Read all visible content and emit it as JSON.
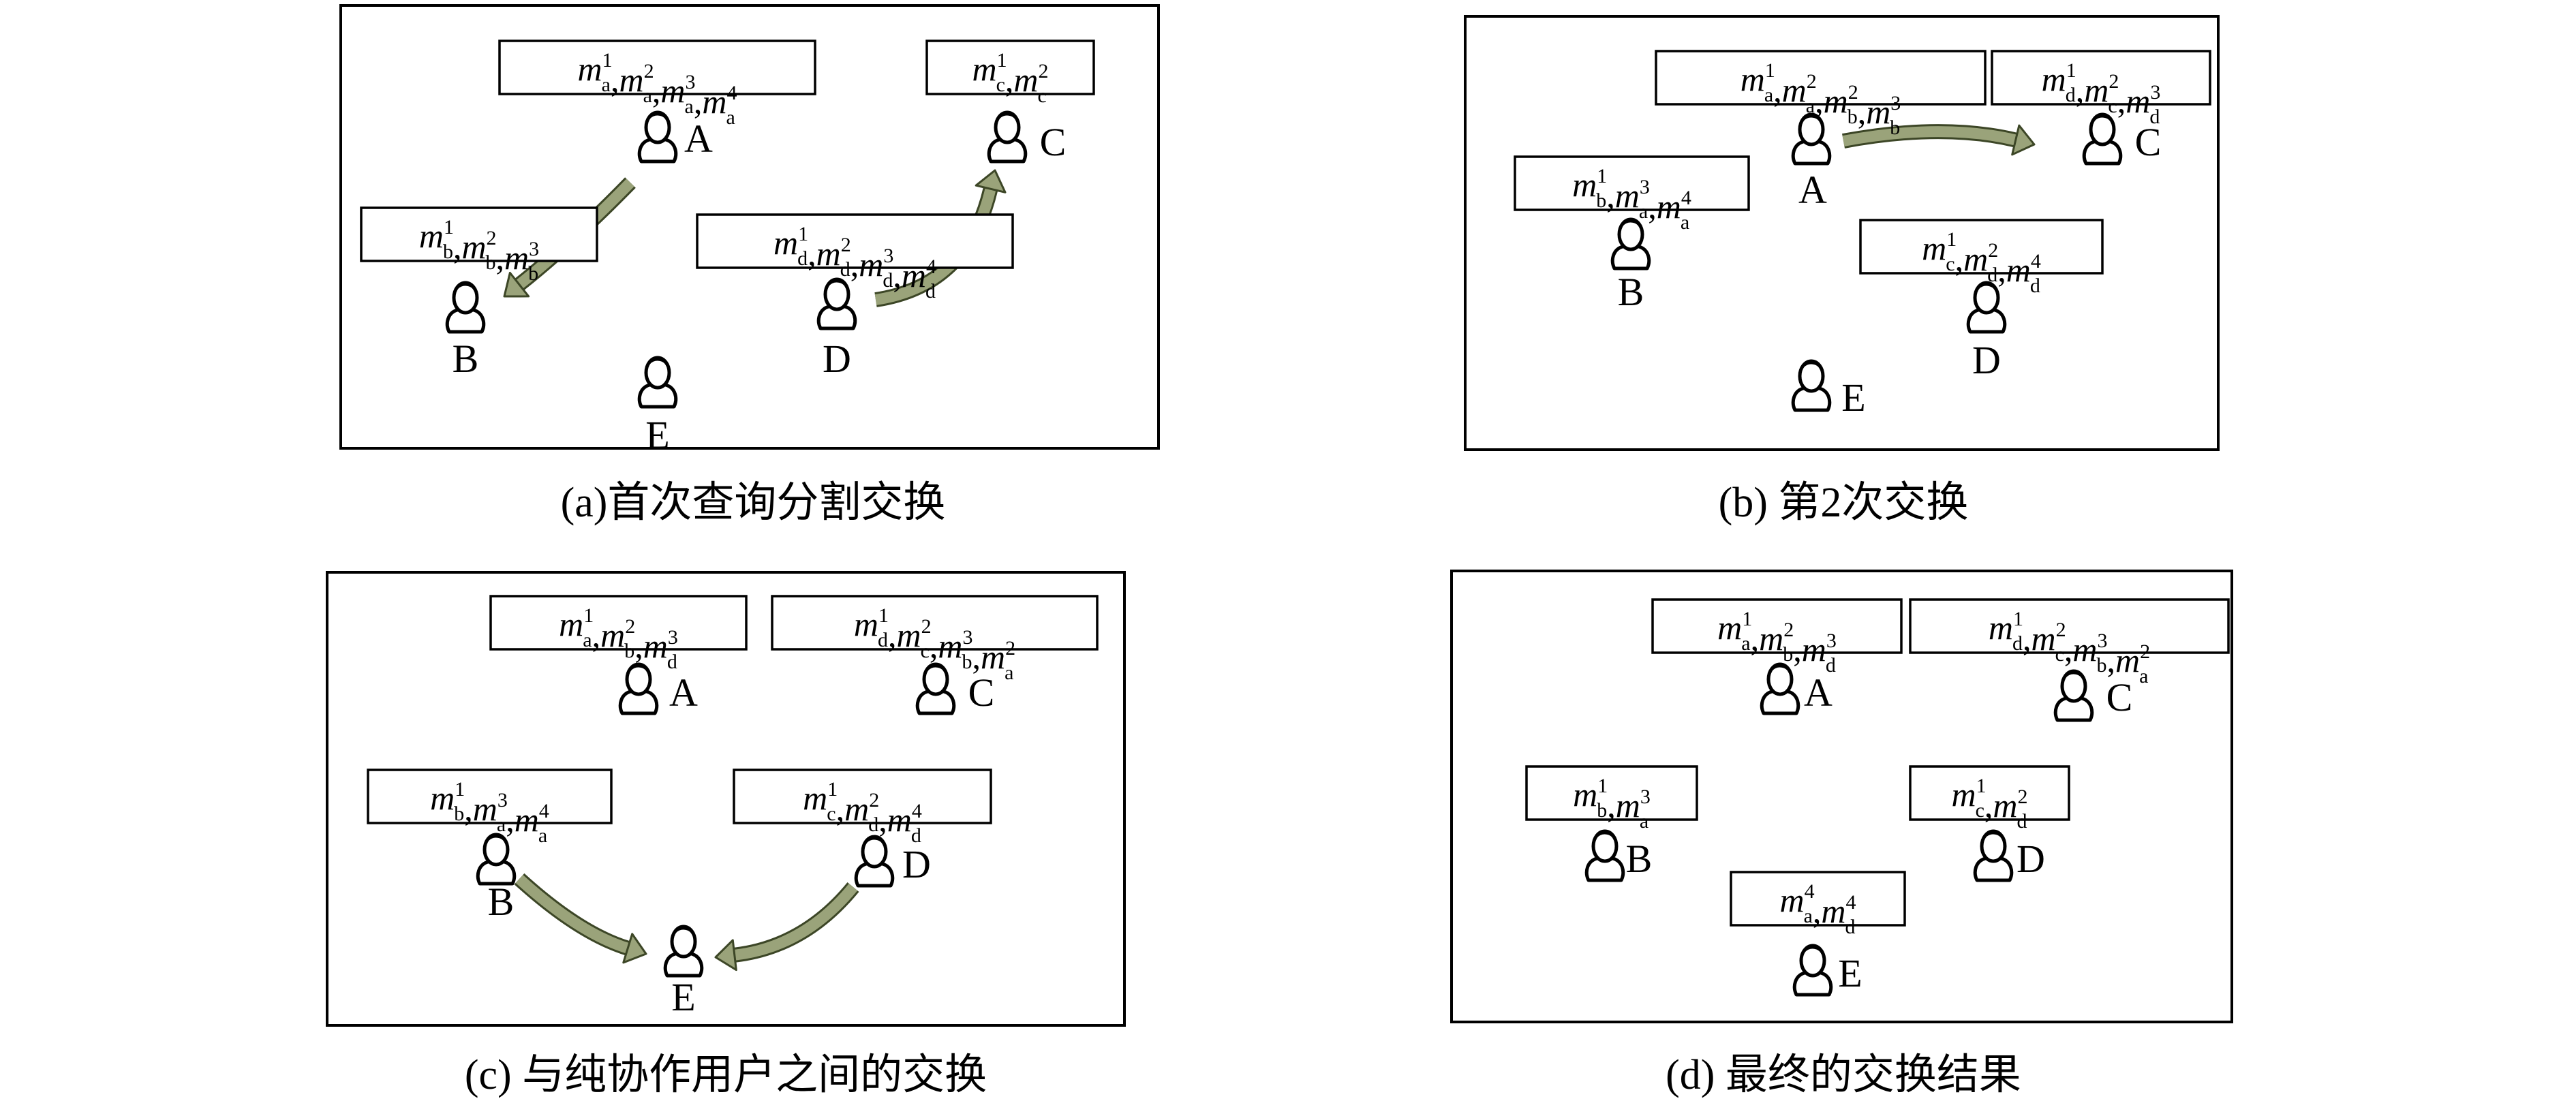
{
  "panels": [
    {
      "id": "a",
      "caption": "(a)首次查询分割交换",
      "users": [
        {
          "name": "A",
          "msgs": [
            [
              "a",
              "1"
            ],
            [
              "a",
              "2"
            ],
            [
              "a",
              "3"
            ],
            [
              "a",
              "4"
            ]
          ]
        },
        {
          "name": "B",
          "msgs": [
            [
              "b",
              "1"
            ],
            [
              "b",
              "2"
            ],
            [
              "b",
              "3"
            ]
          ]
        },
        {
          "name": "C",
          "msgs": [
            [
              "c",
              "1"
            ],
            [
              "c",
              "2"
            ]
          ]
        },
        {
          "name": "D",
          "msgs": [
            [
              "d",
              "1"
            ],
            [
              "d",
              "2"
            ],
            [
              "d",
              "3"
            ],
            [
              "d",
              "4"
            ]
          ]
        },
        {
          "name": "E",
          "msgs": []
        }
      ],
      "exchanges": [
        {
          "from": "A",
          "to": "B"
        },
        {
          "from": "D",
          "to": "C"
        }
      ]
    },
    {
      "id": "b",
      "caption": "(b) 第2次交换",
      "users": [
        {
          "name": "A",
          "msgs": [
            [
              "a",
              "1"
            ],
            [
              "a",
              "2"
            ],
            [
              "b",
              "2"
            ],
            [
              "b",
              "3"
            ]
          ]
        },
        {
          "name": "B",
          "msgs": [
            [
              "b",
              "1"
            ],
            [
              "a",
              "3"
            ],
            [
              "a",
              "4"
            ]
          ]
        },
        {
          "name": "C",
          "msgs": [
            [
              "d",
              "1"
            ],
            [
              "c",
              "2"
            ],
            [
              "d",
              "3"
            ]
          ]
        },
        {
          "name": "D",
          "msgs": [
            [
              "c",
              "1"
            ],
            [
              "d",
              "2"
            ],
            [
              "d",
              "4"
            ]
          ]
        },
        {
          "name": "E",
          "msgs": []
        }
      ],
      "exchanges": [
        {
          "from": "A",
          "to": "C"
        }
      ]
    },
    {
      "id": "c",
      "caption": "(c) 与纯协作用户之间的交换",
      "users": [
        {
          "name": "A",
          "msgs": [
            [
              "a",
              "1"
            ],
            [
              "b",
              "2"
            ],
            [
              "d",
              "3"
            ]
          ]
        },
        {
          "name": "C",
          "msgs": [
            [
              "d",
              "1"
            ],
            [
              "c",
              "2"
            ],
            [
              "b",
              "3"
            ],
            [
              "a",
              "2"
            ]
          ]
        },
        {
          "name": "B",
          "msgs": [
            [
              "b",
              "1"
            ],
            [
              "a",
              "3"
            ],
            [
              "a",
              "4"
            ]
          ]
        },
        {
          "name": "D",
          "msgs": [
            [
              "c",
              "1"
            ],
            [
              "d",
              "2"
            ],
            [
              "d",
              "4"
            ]
          ]
        },
        {
          "name": "E",
          "msgs": []
        }
      ],
      "exchanges": [
        {
          "from": "B",
          "to": "E"
        },
        {
          "from": "D",
          "to": "E"
        }
      ]
    },
    {
      "id": "d",
      "caption": "(d) 最终的交换结果",
      "users": [
        {
          "name": "A",
          "msgs": [
            [
              "a",
              "1"
            ],
            [
              "b",
              "2"
            ],
            [
              "d",
              "3"
            ]
          ]
        },
        {
          "name": "C",
          "msgs": [
            [
              "d",
              "1"
            ],
            [
              "c",
              "2"
            ],
            [
              "b",
              "3"
            ],
            [
              "a",
              "2"
            ]
          ]
        },
        {
          "name": "B",
          "msgs": [
            [
              "b",
              "1"
            ],
            [
              "a",
              "3"
            ]
          ]
        },
        {
          "name": "D",
          "msgs": [
            [
              "c",
              "1"
            ],
            [
              "d",
              "2"
            ]
          ]
        },
        {
          "name": "E",
          "msgs": [
            [
              "a",
              "4"
            ],
            [
              "d",
              "4"
            ]
          ]
        }
      ],
      "exchanges": []
    }
  ],
  "colors": {
    "arrow_fill": "#9aa37a",
    "arrow_stroke": "#3c4626",
    "line": "#000000"
  }
}
